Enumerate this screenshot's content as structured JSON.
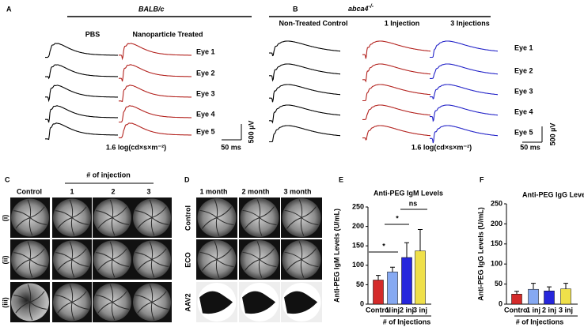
{
  "panel_a": {
    "label": "A",
    "strain": "BALB/c",
    "columns": [
      "PBS",
      "Nanoparticle Treated"
    ],
    "rows": [
      "Eye 1",
      "Eye 2",
      "Eye 3",
      "Eye 4",
      "Eye 5"
    ],
    "scale_y": "500 µV",
    "scale_x": "50 ms",
    "flash": "1.6 log(cd×s×m⁻²)"
  },
  "panel_b": {
    "label": "B",
    "strain": {
      "gene": "abca4",
      "genotype": "-/-"
    },
    "columns": [
      "Non-Treated Control",
      "1 Injection",
      "3 Injections"
    ],
    "rows": [
      "Eye 1",
      "Eye 2",
      "Eye 3",
      "Eye 4",
      "Eye 5"
    ],
    "scale_y": "500 µV",
    "scale_x": "50 ms",
    "flash": "1.6 log(cd×s×m⁻²)"
  },
  "panel_c": {
    "label": "C",
    "group": "# of injection",
    "columns": [
      "Control",
      "1",
      "2",
      "3"
    ],
    "rows": [
      "(i)",
      "(ii)",
      "(iii)"
    ]
  },
  "panel_d": {
    "label": "D",
    "columns": [
      "1 month",
      "2 month",
      "3 month"
    ],
    "rows": [
      "Control",
      "ECO",
      "AAV2"
    ]
  },
  "chart_data": [
    {
      "type": "bar",
      "label": "E",
      "title": "Anti-PEG IgM Levels",
      "ylabel": "Anti-PEG IgM Levels (U/mL)",
      "xlabel": "# of Injections",
      "categories": [
        "Control",
        "1 inj",
        "2 inj",
        "3 inj"
      ],
      "values": [
        62,
        83,
        120,
        137
      ],
      "errors": [
        12,
        12,
        38,
        55
      ],
      "colors": [
        "#d42a2a",
        "#86a9f2",
        "#2626dc",
        "#efe04a"
      ],
      "ylim": [
        0,
        250
      ],
      "yticks": [
        0,
        50,
        100,
        150,
        200,
        250
      ],
      "annotations": [
        "*",
        "*",
        "ns"
      ]
    },
    {
      "type": "bar",
      "label": "F",
      "title": "Anti-PEG IgG Levels",
      "ylabel": "Anti-PEG IgG Levels (U/mL)",
      "xlabel": "# of Injections",
      "categories": [
        "Control",
        "1 inj",
        "2 inj",
        "3 inj"
      ],
      "values": [
        25,
        37,
        33,
        38
      ],
      "errors": [
        7,
        15,
        10,
        14
      ],
      "colors": [
        "#d42a2a",
        "#86a9f2",
        "#2626dc",
        "#efe04a"
      ],
      "ylim": [
        0,
        250
      ],
      "yticks": [
        0,
        50,
        100,
        150,
        200,
        250
      ]
    }
  ]
}
